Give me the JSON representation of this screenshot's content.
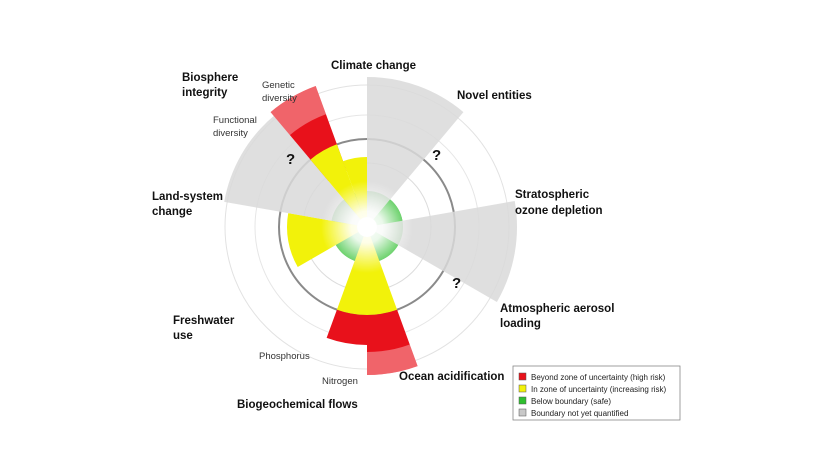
{
  "labels": {
    "climate_change": "Climate change",
    "novel_entities": "Novel entities",
    "stratospheric_line1": "Stratospheric",
    "stratospheric_line2": "ozone depletion",
    "aerosol_line1": "Atmospheric aerosol",
    "aerosol_line2": "loading",
    "ocean_acidification": "Ocean acidification",
    "biogeochemical_flows": "Biogeochemical flows",
    "nitrogen": "Nitrogen",
    "phosphorus": "Phosphorus",
    "freshwater_line1": "Freshwater",
    "freshwater_line2": "use",
    "land_line1": "Land-system",
    "land_line2": "change",
    "biosphere_line1": "Biosphere",
    "biosphere_line2": "integrity",
    "genetic_line1": "Genetic",
    "genetic_line2": "diversity",
    "functional_line1": "Functional",
    "functional_line2": "diversity"
  },
  "question_mark": "?",
  "legend": {
    "items": [
      {
        "label": "Beyond zone of uncertainty (high risk)",
        "color": "#e8111b"
      },
      {
        "label": "In zone of uncertainty (increasing risk)",
        "color": "#f2f20a"
      },
      {
        "label": "Below boundary (safe)",
        "color": "#2fbf2f"
      },
      {
        "label": "Boundary not yet quantified",
        "color": "#c8c8c8"
      }
    ]
  },
  "colors": {
    "high_risk": "#e8111b",
    "uncertainty": "#f2f20a",
    "safe": "#2fbf2f",
    "unquantified": "#d9d9d9"
  }
}
